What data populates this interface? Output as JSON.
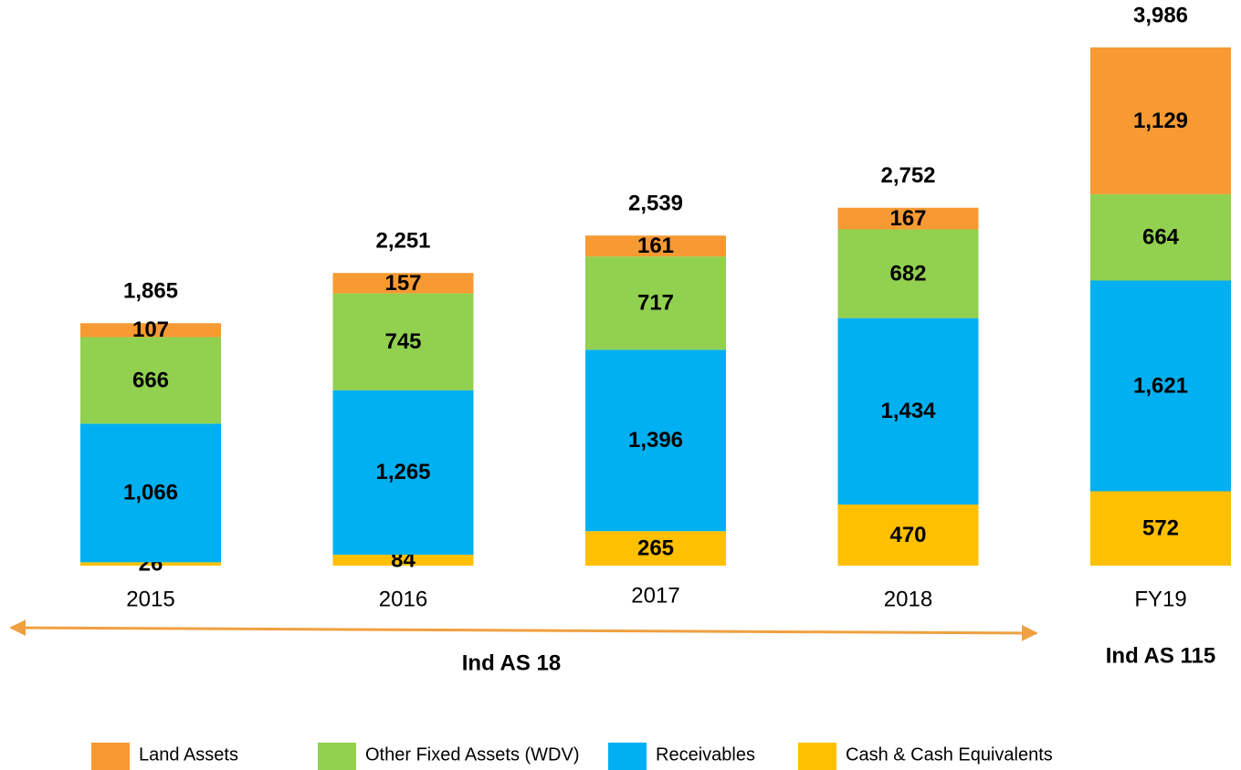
{
  "chart_data": {
    "type": "stacked_bar",
    "categories": [
      "2015",
      "2016",
      "2017",
      "2018",
      "FY19"
    ],
    "series": [
      {
        "name": "Cash & Cash Equivalents",
        "color": "#ffc000",
        "values": [
          26,
          84,
          265,
          470,
          572
        ],
        "value_labels": [
          "26",
          "84",
          "265",
          "470",
          "572"
        ]
      },
      {
        "name": "Receivables",
        "color": "#00b0f0",
        "values": [
          1066,
          1265,
          1396,
          1434,
          1621
        ],
        "value_labels": [
          "1,066",
          "1,265",
          "1,396",
          "1,434",
          "1,621"
        ]
      },
      {
        "name": "Other Fixed Assets (WDV)",
        "color": "#92d050",
        "values": [
          666,
          745,
          717,
          682,
          664
        ],
        "value_labels": [
          "666",
          "745",
          "717",
          "682",
          "664"
        ]
      },
      {
        "name": "Land Assets",
        "color": "#f79a33",
        "values": [
          107,
          157,
          161,
          167,
          1129
        ],
        "value_labels": [
          "107",
          "157",
          "161",
          "167",
          "1,129"
        ]
      }
    ],
    "totals": [
      1865,
      2251,
      2539,
      2752,
      3986
    ],
    "totals_labels": [
      "1,865",
      "2,251",
      "2,539",
      "2,752",
      "3,986"
    ],
    "annotations": [
      "Ind AS 18",
      "Ind AS 115"
    ],
    "legend_order": [
      3,
      2,
      1,
      0
    ]
  }
}
